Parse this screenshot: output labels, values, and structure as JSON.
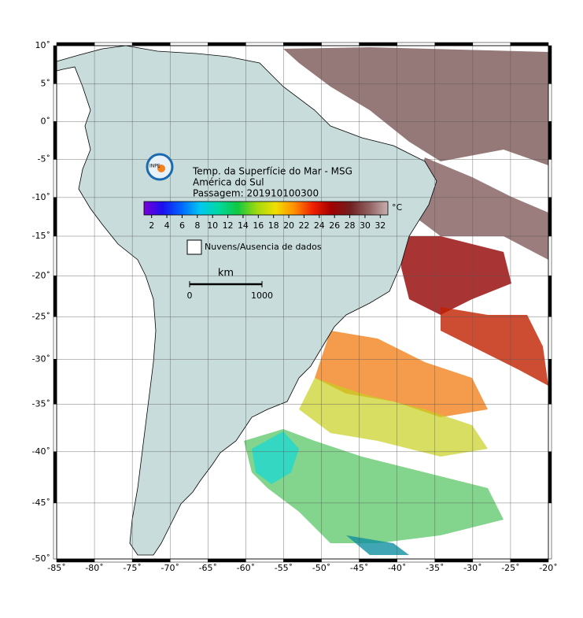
{
  "map": {
    "title_lines": [
      "Temp. da Superfície do Mar - MSG",
      "América do Sul",
      "Passagem: 201910100300"
    ],
    "xlim": [
      -85,
      -20
    ],
    "ylim": [
      -50,
      10
    ],
    "xticks": [
      {
        "value": -85,
        "label": "-85˚"
      },
      {
        "value": -80,
        "label": "-80˚"
      },
      {
        "value": -75,
        "label": "-75˚"
      },
      {
        "value": -70,
        "label": "-70˚"
      },
      {
        "value": -65,
        "label": "-65˚"
      },
      {
        "value": -60,
        "label": "-60˚"
      },
      {
        "value": -55,
        "label": "-55˚"
      },
      {
        "value": -50,
        "label": "-50˚"
      },
      {
        "value": -45,
        "label": "-45˚"
      },
      {
        "value": -40,
        "label": "-40˚"
      },
      {
        "value": -35,
        "label": "-35˚"
      },
      {
        "value": -30,
        "label": "-30˚"
      },
      {
        "value": -25,
        "label": "-25˚"
      },
      {
        "value": -20,
        "label": "-20˚"
      }
    ],
    "yticks": [
      {
        "value": 10,
        "label": "10˚"
      },
      {
        "value": 5,
        "label": "5˚"
      },
      {
        "value": 0,
        "label": "0˚"
      },
      {
        "value": -5,
        "label": "-5˚"
      },
      {
        "value": -10,
        "label": "-10˚"
      },
      {
        "value": -15,
        "label": "-15˚"
      },
      {
        "value": -20,
        "label": "-20˚"
      },
      {
        "value": -25,
        "label": "-25˚"
      },
      {
        "value": -30,
        "label": "-30˚"
      },
      {
        "value": -35,
        "label": "-35˚"
      },
      {
        "value": -40,
        "label": "-40˚"
      },
      {
        "value": -45,
        "label": "-45˚"
      },
      {
        "value": -50,
        "label": "-50˚"
      }
    ],
    "grid": true,
    "colorbar": {
      "unit": "°C",
      "range": [
        1,
        33
      ],
      "ticks": [
        2,
        4,
        6,
        8,
        10,
        12,
        14,
        16,
        18,
        20,
        22,
        24,
        26,
        28,
        30,
        32
      ],
      "colors": [
        "#7a00d8",
        "#1a10f0",
        "#0066ff",
        "#00c8f0",
        "#00d8a0",
        "#10c840",
        "#a0d810",
        "#f0e000",
        "#ff9000",
        "#f02000",
        "#a00000",
        "#702020",
        "#906060",
        "#c8b0b0"
      ]
    },
    "legend": "Nuvens/Ausencia de dados",
    "scale_bar": {
      "unit": "km",
      "range": [
        0,
        1000
      ],
      "ticks": [
        0,
        1000
      ]
    }
  }
}
